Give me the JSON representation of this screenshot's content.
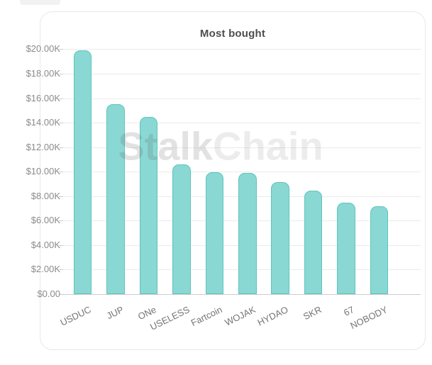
{
  "colors": {
    "bar_fill": "#8ad8d3",
    "bar_border": "#5fc4bc",
    "gridline": "#ebebeb",
    "axis_line": "#cccccc",
    "y_label_text": "#8b8b8b",
    "x_label_text": "#757575",
    "title_text": "#4d4d4d",
    "card_border": "#e8e8e8",
    "fragment_bg": "#f2f2f2"
  },
  "watermark": {
    "brand_part1": "Stalk",
    "brand_part2": "Chain"
  },
  "chart_data": {
    "type": "bar",
    "title": "Most bought",
    "categories": [
      "USDUC",
      "JUP",
      "ONe",
      "USELESS",
      "Fartcoin",
      "WOJAK",
      "HYDAO",
      "SKR",
      "67",
      "NOBODY"
    ],
    "values": [
      19900,
      15500,
      14450,
      10600,
      9950,
      9900,
      9150,
      8450,
      7450,
      7200
    ],
    "y_tick_labels": [
      "$20.00K",
      "$18.00K",
      "$16.00K",
      "$14.00K",
      "$12.00K",
      "$10.00K",
      "$8.00K",
      "$6.00K",
      "$4.00K",
      "$2.00K",
      "$0.00"
    ],
    "ylim": [
      0,
      20000
    ],
    "y_tick_step": 2000,
    "grid": true,
    "legend": false,
    "x_label_rotation_deg": -26,
    "xlabel": "",
    "ylabel": ""
  }
}
